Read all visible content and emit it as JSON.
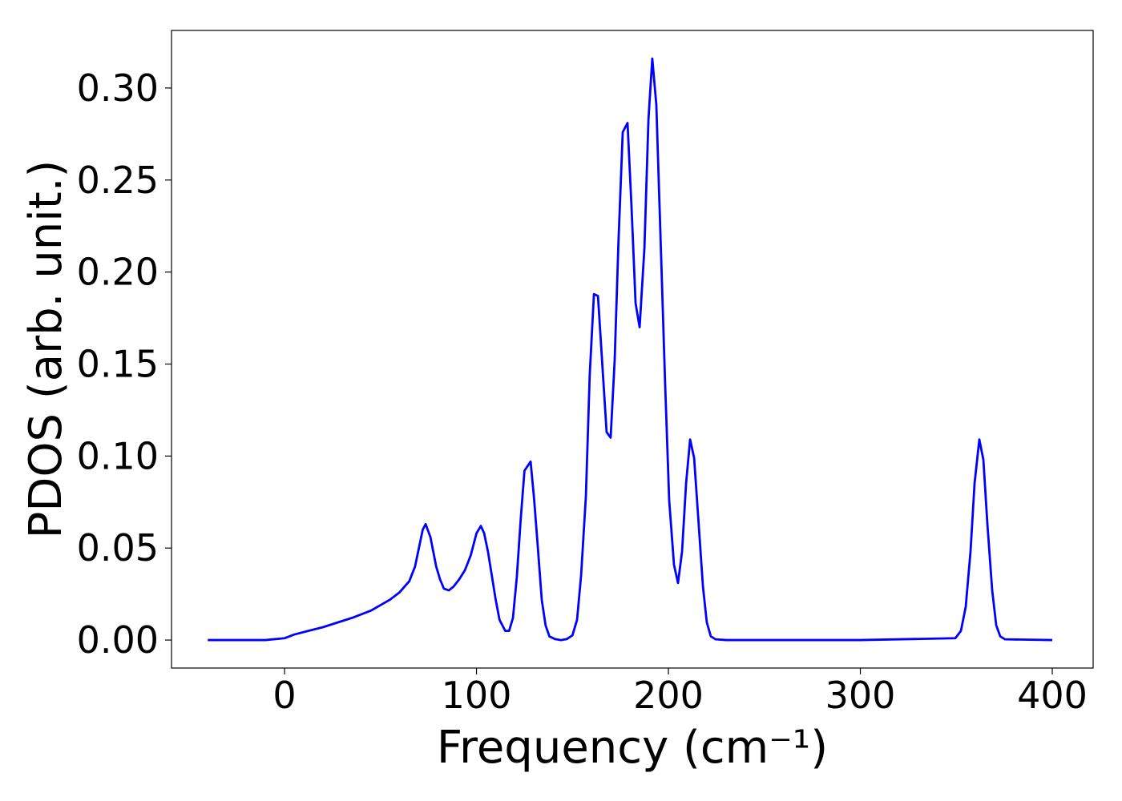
{
  "chart_data": {
    "type": "line",
    "xlabel": "Frequency (cm⁻¹)",
    "ylabel": "PDOS (arb. unit.)",
    "xlim": [
      -58.9,
      421.3
    ],
    "ylim": [
      -0.0152,
      0.3313
    ],
    "xticks": [
      0,
      100,
      200,
      300,
      400
    ],
    "yticks": [
      {
        "value": 0,
        "label": "0.00"
      },
      {
        "value": 0.05,
        "label": "0.05"
      },
      {
        "value": 0.1,
        "label": "0.10"
      },
      {
        "value": 0.15,
        "label": "0.15"
      },
      {
        "value": 0.2,
        "label": "0.20"
      },
      {
        "value": 0.25,
        "label": "0.25"
      },
      {
        "value": 0.3,
        "label": "0.30"
      }
    ],
    "grid": false,
    "series": [
      {
        "color": "#0000ff",
        "x": [
          -40,
          -10,
          0,
          5,
          20,
          35,
          45,
          55,
          60,
          65,
          68,
          70,
          72,
          73.5,
          76,
          79,
          81,
          83,
          85.6,
          88,
          91,
          94,
          97,
          100,
          102.3,
          104,
          106,
          108,
          110,
          112,
          115,
          117,
          119,
          121,
          123,
          125,
          128.2,
          130,
          132,
          134,
          136,
          138,
          141,
          144,
          147,
          150,
          152.4,
          154.5,
          157,
          159,
          161.2,
          163.3,
          167.8,
          169.9,
          172,
          174,
          176.2,
          178.7,
          180.8,
          182.9,
          185,
          187.5,
          189.6,
          191.6,
          193.7,
          195.8,
          198.3,
          200.4,
          202.9,
          205,
          207.1,
          209.2,
          211.3,
          213.4,
          215.9,
          218,
          220,
          222.1,
          224.6,
          230,
          300,
          349.5,
          352.4,
          354.9,
          357.4,
          359.5,
          362,
          364.1,
          366.2,
          368.7,
          370.8,
          372.9,
          375.4,
          400
        ],
        "values": [
          0,
          0,
          0.001,
          0.003,
          0.007,
          0.012,
          0.016,
          0.022,
          0.026,
          0.032,
          0.04,
          0.05,
          0.06,
          0.063,
          0.056,
          0.04,
          0.033,
          0.028,
          0.027,
          0.029,
          0.033,
          0.038,
          0.046,
          0.058,
          0.062,
          0.058,
          0.048,
          0.035,
          0.022,
          0.011,
          0.005,
          0.005,
          0.012,
          0.034,
          0.065,
          0.092,
          0.097,
          0.077,
          0.05,
          0.022,
          0.008,
          0.002,
          0.0005,
          0,
          0.0005,
          0.0026,
          0.011,
          0.035,
          0.078,
          0.144,
          0.188,
          0.187,
          0.113,
          0.11,
          0.152,
          0.217,
          0.276,
          0.281,
          0.235,
          0.183,
          0.17,
          0.213,
          0.283,
          0.316,
          0.291,
          0.222,
          0.139,
          0.076,
          0.041,
          0.031,
          0.048,
          0.085,
          0.109,
          0.099,
          0.061,
          0.029,
          0.0096,
          0.002,
          0.0004,
          0,
          0,
          0.001,
          0.005,
          0.018,
          0.048,
          0.085,
          0.109,
          0.098,
          0.063,
          0.027,
          0.008,
          0.002,
          0.0004,
          0
        ]
      }
    ]
  }
}
